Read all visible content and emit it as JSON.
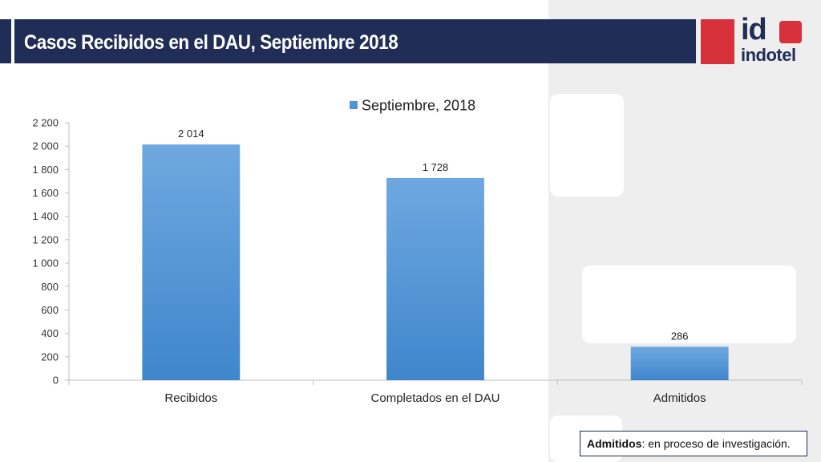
{
  "slide": {
    "title": "Casos Recibidos en el DAU, Septiembre 2018",
    "logo": {
      "mark": "id",
      "word": "indotel"
    },
    "note": {
      "term": "Admitidos",
      "text": ": en proceso de investigación."
    },
    "colors": {
      "title_bar": "#1f2d57",
      "brand_red": "#d7323b",
      "bar": "#4f93d8"
    }
  },
  "chart_data": {
    "type": "bar",
    "categories": [
      "Recibidos",
      "Completados en el DAU",
      "Admitidos"
    ],
    "series": [
      {
        "name": "Septiembre, 2018",
        "values": [
          2014,
          1728,
          286
        ]
      }
    ],
    "data_labels": [
      "2 014",
      "1 728",
      "286"
    ],
    "ylim": [
      0,
      2200
    ],
    "yticks": [
      0,
      200,
      400,
      600,
      800,
      1000,
      1200,
      1400,
      1600,
      1800,
      2000,
      2200
    ],
    "ytick_labels": [
      "0",
      "200",
      "400",
      "600",
      "800",
      "1 000",
      "1 200",
      "1 400",
      "1 600",
      "1 800",
      "2 000",
      "2 200"
    ],
    "legend": "top-center",
    "grid": false
  }
}
